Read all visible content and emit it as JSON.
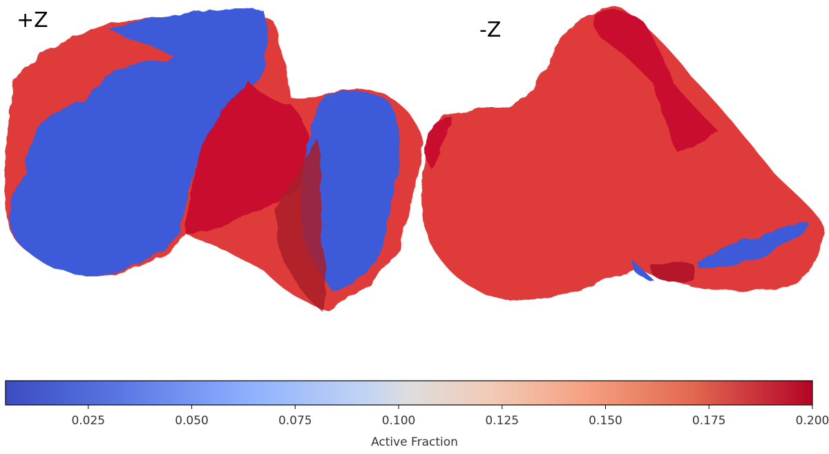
{
  "views": {
    "plus_label": "+Z",
    "minus_label": "-Z"
  },
  "colorbar": {
    "title": "Active Fraction",
    "min": 0.005,
    "max": 0.2,
    "ticks": [
      "0.025",
      "0.050",
      "0.075",
      "0.100",
      "0.125",
      "0.150",
      "0.175",
      "0.200"
    ],
    "tick_values": [
      0.025,
      0.05,
      0.075,
      0.1,
      0.125,
      0.15,
      0.175,
      0.2
    ],
    "colormap": "coolwarm",
    "colors": {
      "low": "#3b4cc0",
      "mid": "#dddddd",
      "high": "#b40426"
    }
  },
  "surface_colors": {
    "blue": "#3d5ad8",
    "red": "#e03a3a",
    "dark_red": "#c8102e"
  }
}
